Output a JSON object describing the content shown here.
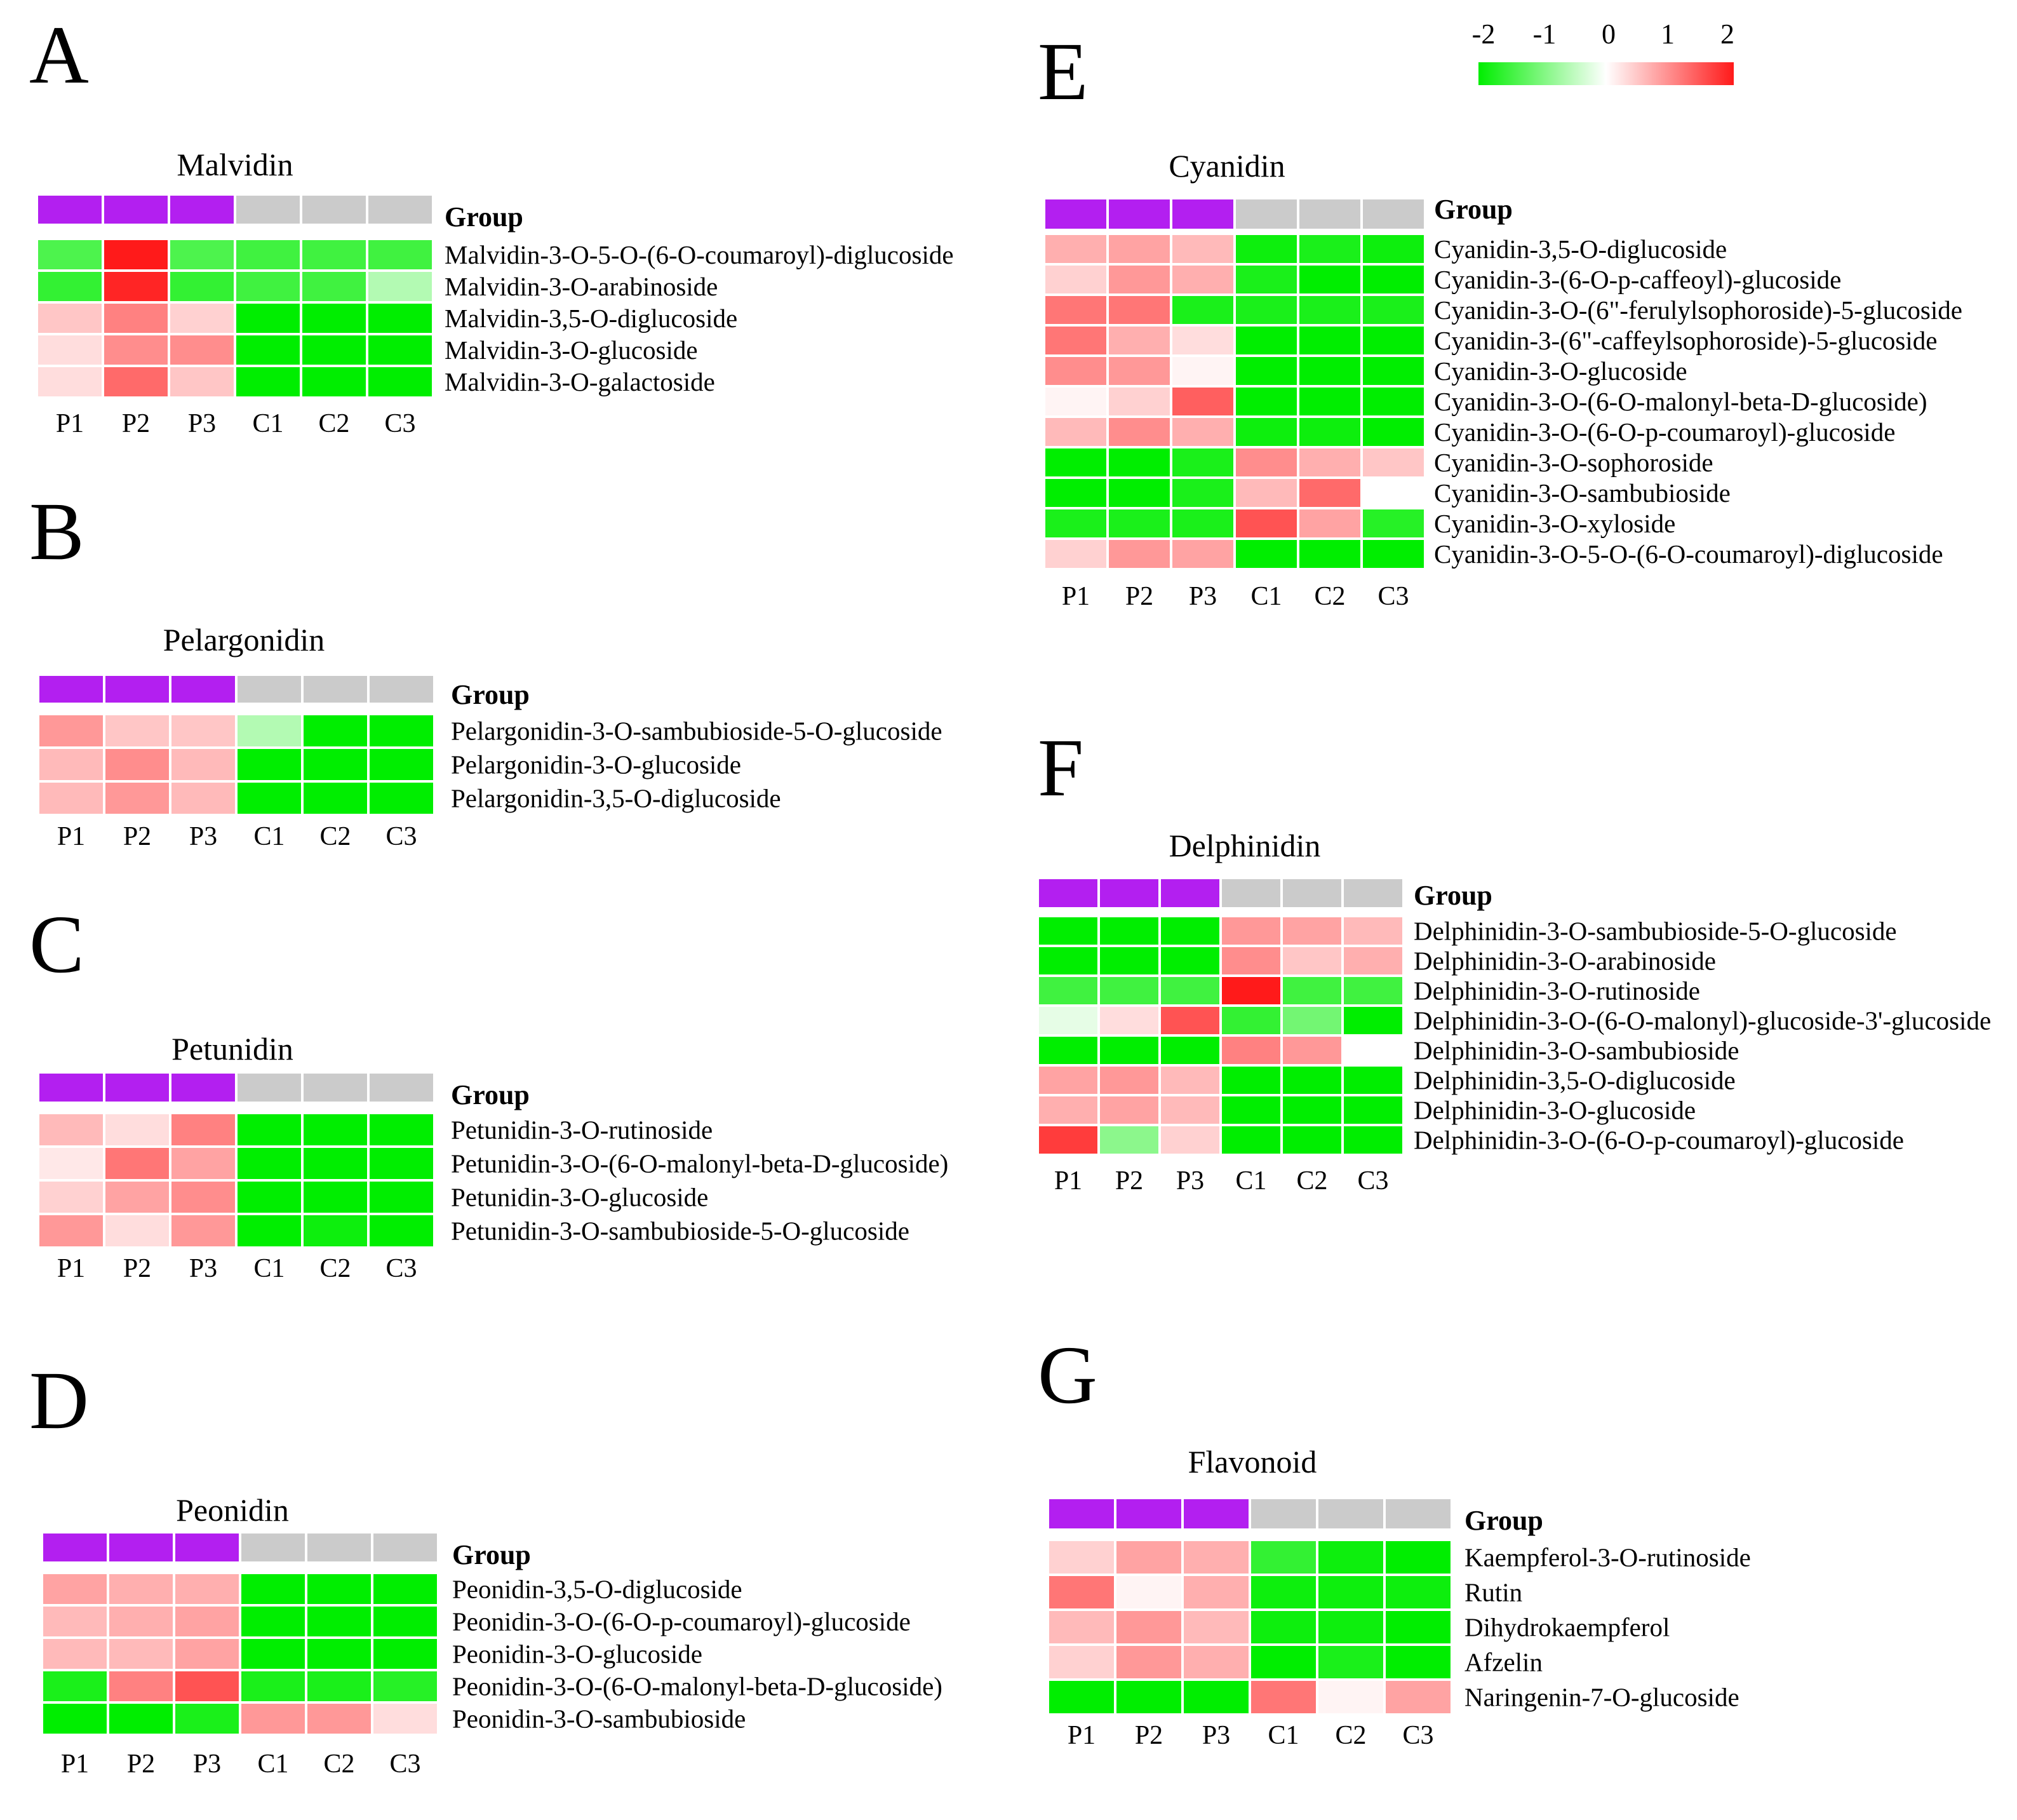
{
  "colorbar": {
    "ticks": [
      "-2",
      "-1",
      "0",
      "1",
      "2"
    ],
    "low_color": "#00ee00",
    "mid_color": "#ffffff",
    "high_color": "#ff1a1a"
  },
  "group_colors": {
    "P": "#b31ff0",
    "C": "#cbcbcb"
  },
  "group_label": "Group",
  "chart_data": [
    {
      "panel": "A",
      "type": "heatmap",
      "title": "Malvidin",
      "columns": [
        "P1",
        "P2",
        "P3",
        "C1",
        "C2",
        "C3"
      ],
      "groups": [
        "P",
        "P",
        "P",
        "C",
        "C",
        "C"
      ],
      "rows": [
        "Malvidin-3-O-5-O-(6-O-coumaroyl)-diglucoside",
        "Malvidin-3-O-arabinoside",
        "Malvidin-3,5-O-diglucoside",
        "Malvidin-3-O-glucoside",
        "Malvidin-3-O-galactoside"
      ],
      "values": [
        [
          -1.4,
          2.0,
          -1.4,
          -1.5,
          -1.5,
          -1.5
        ],
        [
          -1.6,
          1.9,
          -1.6,
          -1.5,
          -1.5,
          -0.6
        ],
        [
          0.5,
          1.1,
          0.4,
          -2.0,
          -2.0,
          -2.0
        ],
        [
          0.3,
          1.0,
          1.0,
          -2.0,
          -2.0,
          -2.0
        ],
        [
          0.3,
          1.3,
          0.5,
          -2.0,
          -2.0,
          -2.0
        ]
      ],
      "scale": [
        -2,
        2
      ]
    },
    {
      "panel": "B",
      "type": "heatmap",
      "title": "Pelargonidin",
      "columns": [
        "P1",
        "P2",
        "P3",
        "C1",
        "C2",
        "C3"
      ],
      "groups": [
        "P",
        "P",
        "P",
        "C",
        "C",
        "C"
      ],
      "rows": [
        "Pelargonidin-3-O-sambubioside-5-O-glucoside",
        "Pelargonidin-3-O-glucoside",
        "Pelargonidin-3,5-O-diglucoside"
      ],
      "values": [
        [
          0.9,
          0.5,
          0.5,
          -0.6,
          -2.0,
          -2.0
        ],
        [
          0.6,
          1.0,
          0.6,
          -2.0,
          -2.0,
          -2.0
        ],
        [
          0.6,
          0.9,
          0.6,
          -2.0,
          -2.0,
          -2.0
        ]
      ],
      "scale": [
        -2,
        2
      ]
    },
    {
      "panel": "C",
      "type": "heatmap",
      "title": "Petunidin",
      "columns": [
        "P1",
        "P2",
        "P3",
        "C1",
        "C2",
        "C3"
      ],
      "groups": [
        "P",
        "P",
        "P",
        "C",
        "C",
        "C"
      ],
      "rows": [
        "Petunidin-3-O-rutinoside",
        "Petunidin-3-O-(6-O-malonyl-beta-D-glucoside)",
        "Petunidin-3-O-glucoside",
        "Petunidin-3-O-sambubioside-5-O-glucoside"
      ],
      "values": [
        [
          0.6,
          0.3,
          1.1,
          -2.0,
          -2.0,
          -2.0
        ],
        [
          0.2,
          1.2,
          0.8,
          -2.0,
          -2.0,
          -2.0
        ],
        [
          0.4,
          0.8,
          1.0,
          -2.0,
          -2.0,
          -2.0
        ],
        [
          0.9,
          0.3,
          0.9,
          -2.0,
          -1.9,
          -2.0
        ]
      ],
      "scale": [
        -2,
        2
      ]
    },
    {
      "panel": "D",
      "type": "heatmap",
      "title": "Peonidin",
      "columns": [
        "P1",
        "P2",
        "P3",
        "C1",
        "C2",
        "C3"
      ],
      "groups": [
        "P",
        "P",
        "P",
        "C",
        "C",
        "C"
      ],
      "rows": [
        "Peonidin-3,5-O-diglucoside",
        "Peonidin-3-O-(6-O-p-coumaroyl)-glucoside",
        "Peonidin-3-O-glucoside",
        "Peonidin-3-O-(6-O-malonyl-beta-D-glucoside)",
        "Peonidin-3-O-sambubioside"
      ],
      "values": [
        [
          0.8,
          0.7,
          0.7,
          -2.0,
          -2.0,
          -2.0
        ],
        [
          0.6,
          0.7,
          0.8,
          -2.0,
          -2.0,
          -2.0
        ],
        [
          0.6,
          0.6,
          0.8,
          -2.0,
          -2.0,
          -2.0
        ],
        [
          -1.8,
          1.1,
          1.5,
          -1.8,
          -1.8,
          -1.7
        ],
        [
          -2.0,
          -2.0,
          -1.8,
          0.9,
          0.9,
          0.3
        ]
      ],
      "scale": [
        -2,
        2
      ]
    },
    {
      "panel": "E",
      "type": "heatmap",
      "title": "Cyanidin",
      "columns": [
        "P1",
        "P2",
        "P3",
        "C1",
        "C2",
        "C3"
      ],
      "groups": [
        "P",
        "P",
        "P",
        "C",
        "C",
        "C"
      ],
      "rows": [
        "Cyanidin-3,5-O-diglucoside",
        "Cyanidin-3-(6-O-p-caffeoyl)-glucoside",
        "Cyanidin-3-O-(6\"-ferulylsophoroside)-5-glucoside",
        "Cyanidin-3-(6\"-caffeylsophoroside)-5-glucoside",
        "Cyanidin-3-O-glucoside",
        "Cyanidin-3-O-(6-O-malonyl-beta-D-glucoside)",
        "Cyanidin-3-O-(6-O-p-coumaroyl)-glucoside",
        "Cyanidin-3-O-sophoroside",
        "Cyanidin-3-O-sambubioside",
        "Cyanidin-3-O-xyloside",
        "Cyanidin-3-O-5-O-(6-O-coumaroyl)-diglucoside"
      ],
      "values": [
        [
          0.7,
          0.8,
          0.6,
          -1.9,
          -1.8,
          -1.9
        ],
        [
          0.4,
          0.9,
          0.7,
          -1.8,
          -2.0,
          -2.0
        ],
        [
          1.2,
          1.2,
          -1.8,
          -1.8,
          -1.8,
          -1.8
        ],
        [
          1.2,
          0.7,
          0.3,
          -2.0,
          -2.0,
          -2.0
        ],
        [
          1.0,
          0.9,
          0.1,
          -2.0,
          -2.0,
          -2.0
        ],
        [
          0.1,
          0.4,
          1.4,
          -2.0,
          -2.0,
          -2.0
        ],
        [
          0.6,
          1.0,
          0.7,
          -1.9,
          -1.9,
          -2.0
        ],
        [
          -2.0,
          -2.0,
          -1.8,
          1.0,
          0.7,
          0.5
        ],
        [
          -2.0,
          -2.1,
          -1.8,
          0.6,
          1.3,
          0.0
        ],
        [
          -1.8,
          -1.8,
          -1.8,
          1.5,
          0.8,
          -1.7
        ],
        [
          0.4,
          0.9,
          0.8,
          -2.0,
          -2.0,
          -2.0
        ]
      ],
      "scale": [
        -2,
        2
      ]
    },
    {
      "panel": "F",
      "type": "heatmap",
      "title": "Delphinidin",
      "columns": [
        "P1",
        "P2",
        "P3",
        "C1",
        "C2",
        "C3"
      ],
      "groups": [
        "P",
        "P",
        "P",
        "C",
        "C",
        "C"
      ],
      "rows": [
        "Delphinidin-3-O-sambubioside-5-O-glucoside",
        "Delphinidin-3-O-arabinoside",
        "Delphinidin-3-O-rutinoside",
        "Delphinidin-3-O-(6-O-malonyl)-glucoside-3'-glucoside",
        "Delphinidin-3-O-sambubioside",
        "Delphinidin-3,5-O-diglucoside",
        "Delphinidin-3-O-glucoside",
        "Delphinidin-3-O-(6-O-p-coumaroyl)-glucoside"
      ],
      "values": [
        [
          -2.0,
          -2.0,
          -2.0,
          0.9,
          0.8,
          0.6
        ],
        [
          -2.0,
          -2.0,
          -2.0,
          1.0,
          0.5,
          0.7
        ],
        [
          -1.5,
          -1.5,
          -1.5,
          2.0,
          -1.5,
          -1.5
        ],
        [
          -0.2,
          0.3,
          1.5,
          -1.6,
          -1.1,
          -2.0
        ],
        [
          -2.0,
          -2.0,
          -2.0,
          1.1,
          0.9,
          0.0
        ],
        [
          0.8,
          0.9,
          0.6,
          -2.0,
          -2.0,
          -2.0
        ],
        [
          0.7,
          0.8,
          0.6,
          -2.0,
          -2.0,
          -2.0
        ],
        [
          1.7,
          -0.9,
          0.4,
          -2.0,
          -2.0,
          -2.0
        ]
      ],
      "scale": [
        -2,
        2
      ]
    },
    {
      "panel": "G",
      "type": "heatmap",
      "title": "Flavonoid",
      "columns": [
        "P1",
        "P2",
        "P3",
        "C1",
        "C2",
        "C3"
      ],
      "groups": [
        "P",
        "P",
        "P",
        "C",
        "C",
        "C"
      ],
      "rows": [
        "Kaempferol-3-O-rutinoside",
        "Rutin",
        "Dihydrokaempferol",
        "Afzelin",
        "Naringenin-7-O-glucoside"
      ],
      "values": [
        [
          0.4,
          0.8,
          0.7,
          -1.6,
          -1.9,
          -2.0
        ],
        [
          1.2,
          0.1,
          0.7,
          -1.9,
          -1.9,
          -1.9
        ],
        [
          0.6,
          0.9,
          0.6,
          -1.9,
          -1.9,
          -2.0
        ],
        [
          0.4,
          0.9,
          0.7,
          -2.0,
          -1.8,
          -2.0
        ],
        [
          -2.0,
          -2.0,
          -2.0,
          1.2,
          0.1,
          0.8
        ]
      ],
      "scale": [
        -2,
        2
      ]
    }
  ]
}
